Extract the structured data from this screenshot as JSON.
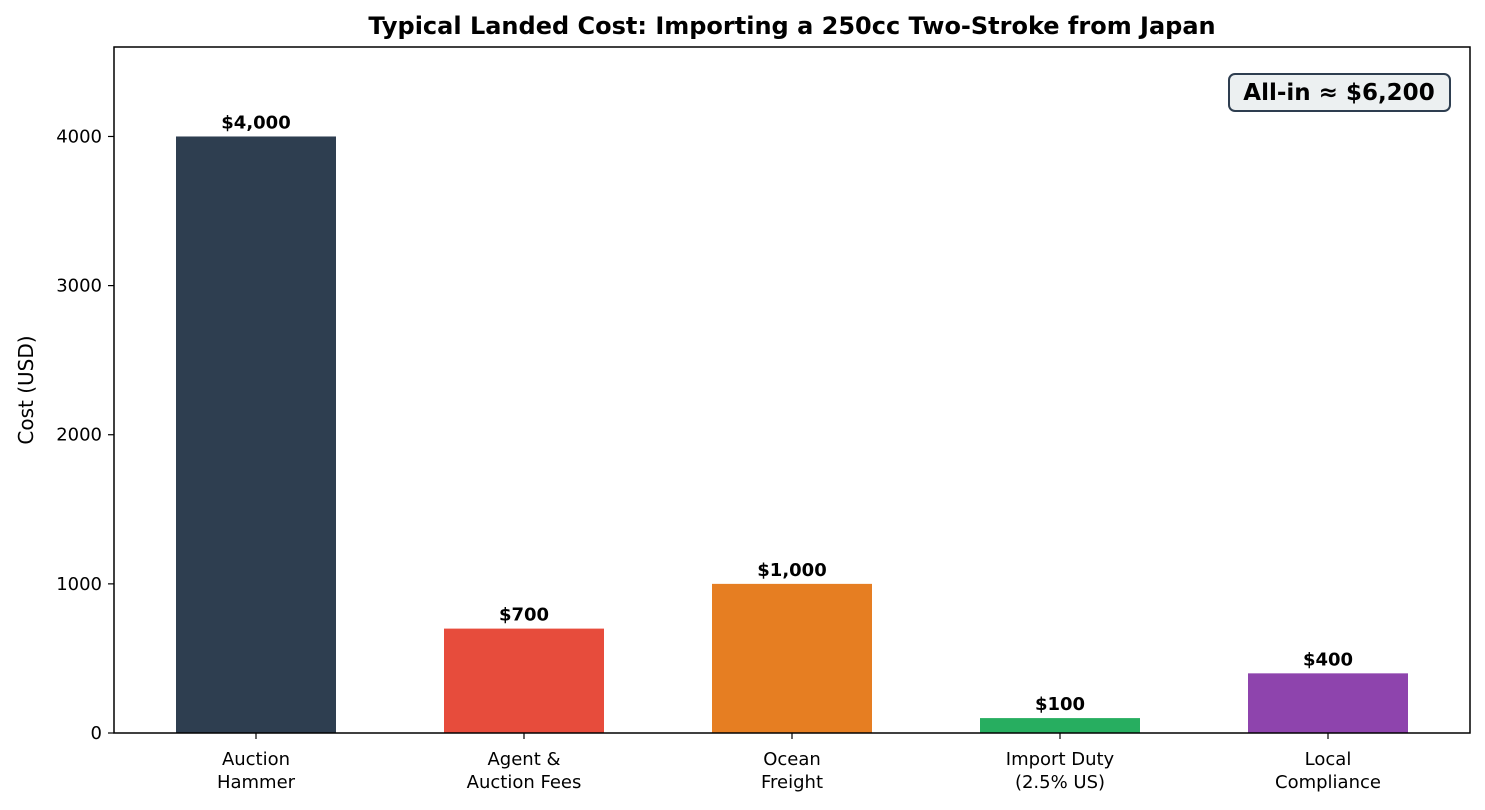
{
  "chart_data": {
    "type": "bar",
    "title": "Typical Landed Cost: Importing a 250cc Two-Stroke from Japan",
    "xlabel": "",
    "ylabel": "Cost (USD)",
    "ylim": [
      0,
      4600
    ],
    "yticks": [
      0,
      1000,
      2000,
      3000,
      4000
    ],
    "grid": false,
    "categories": [
      [
        "Auction",
        "Hammer"
      ],
      [
        "Agent &",
        "Auction Fees"
      ],
      [
        "Ocean",
        "Freight"
      ],
      [
        "Import Duty",
        "(2.5% US)"
      ],
      [
        "Local",
        "Compliance"
      ]
    ],
    "values": [
      4000,
      700,
      1000,
      100,
      400
    ],
    "data_labels": [
      "$4,000",
      "$700",
      "$1,000",
      "$100",
      "$400"
    ],
    "colors": [
      "#2e3e50",
      "#e74c3c",
      "#e67e22",
      "#27ae60",
      "#8e44ad"
    ],
    "annotation": {
      "text": "All-in ≈ $6,200",
      "placement": "top-right",
      "background": "#ecf0f1",
      "border": "#2e3e50"
    }
  }
}
